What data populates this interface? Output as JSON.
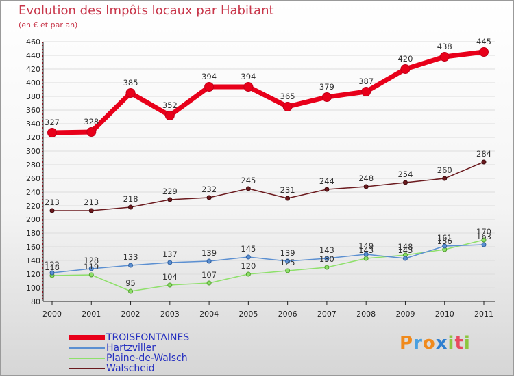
{
  "chart_data": {
    "type": "line",
    "title": "Evolution des Impôts locaux par Habitant",
    "subtitle": "(en € et par an)",
    "categories": [
      "2000",
      "2001",
      "2002",
      "2003",
      "2004",
      "2005",
      "2006",
      "2007",
      "2008",
      "2009",
      "2010",
      "2011"
    ],
    "ylim": [
      80,
      460
    ],
    "yticks": [
      80,
      100,
      120,
      140,
      160,
      180,
      200,
      220,
      240,
      260,
      280,
      300,
      320,
      340,
      360,
      380,
      400,
      420,
      440,
      460
    ],
    "series": [
      {
        "name": "TROISFONTAINES",
        "color": "#e8001a",
        "values": [
          327,
          328,
          385,
          352,
          394,
          394,
          365,
          379,
          387,
          420,
          438,
          445
        ]
      },
      {
        "name": "Hartzviller",
        "color": "#5b8fd1",
        "values": [
          122,
          128,
          133,
          137,
          139,
          145,
          139,
          143,
          149,
          143,
          161,
          163
        ]
      },
      {
        "name": "Plaine-de-Walsch",
        "color": "#8ee06a",
        "values": [
          118,
          119,
          95,
          104,
          107,
          120,
          125,
          130,
          143,
          148,
          156,
          170
        ]
      },
      {
        "name": "Walscheid",
        "color": "#6b1a1e",
        "values": [
          213,
          213,
          218,
          229,
          232,
          245,
          231,
          244,
          248,
          254,
          260,
          284
        ]
      }
    ]
  },
  "brand": "Proxiti"
}
